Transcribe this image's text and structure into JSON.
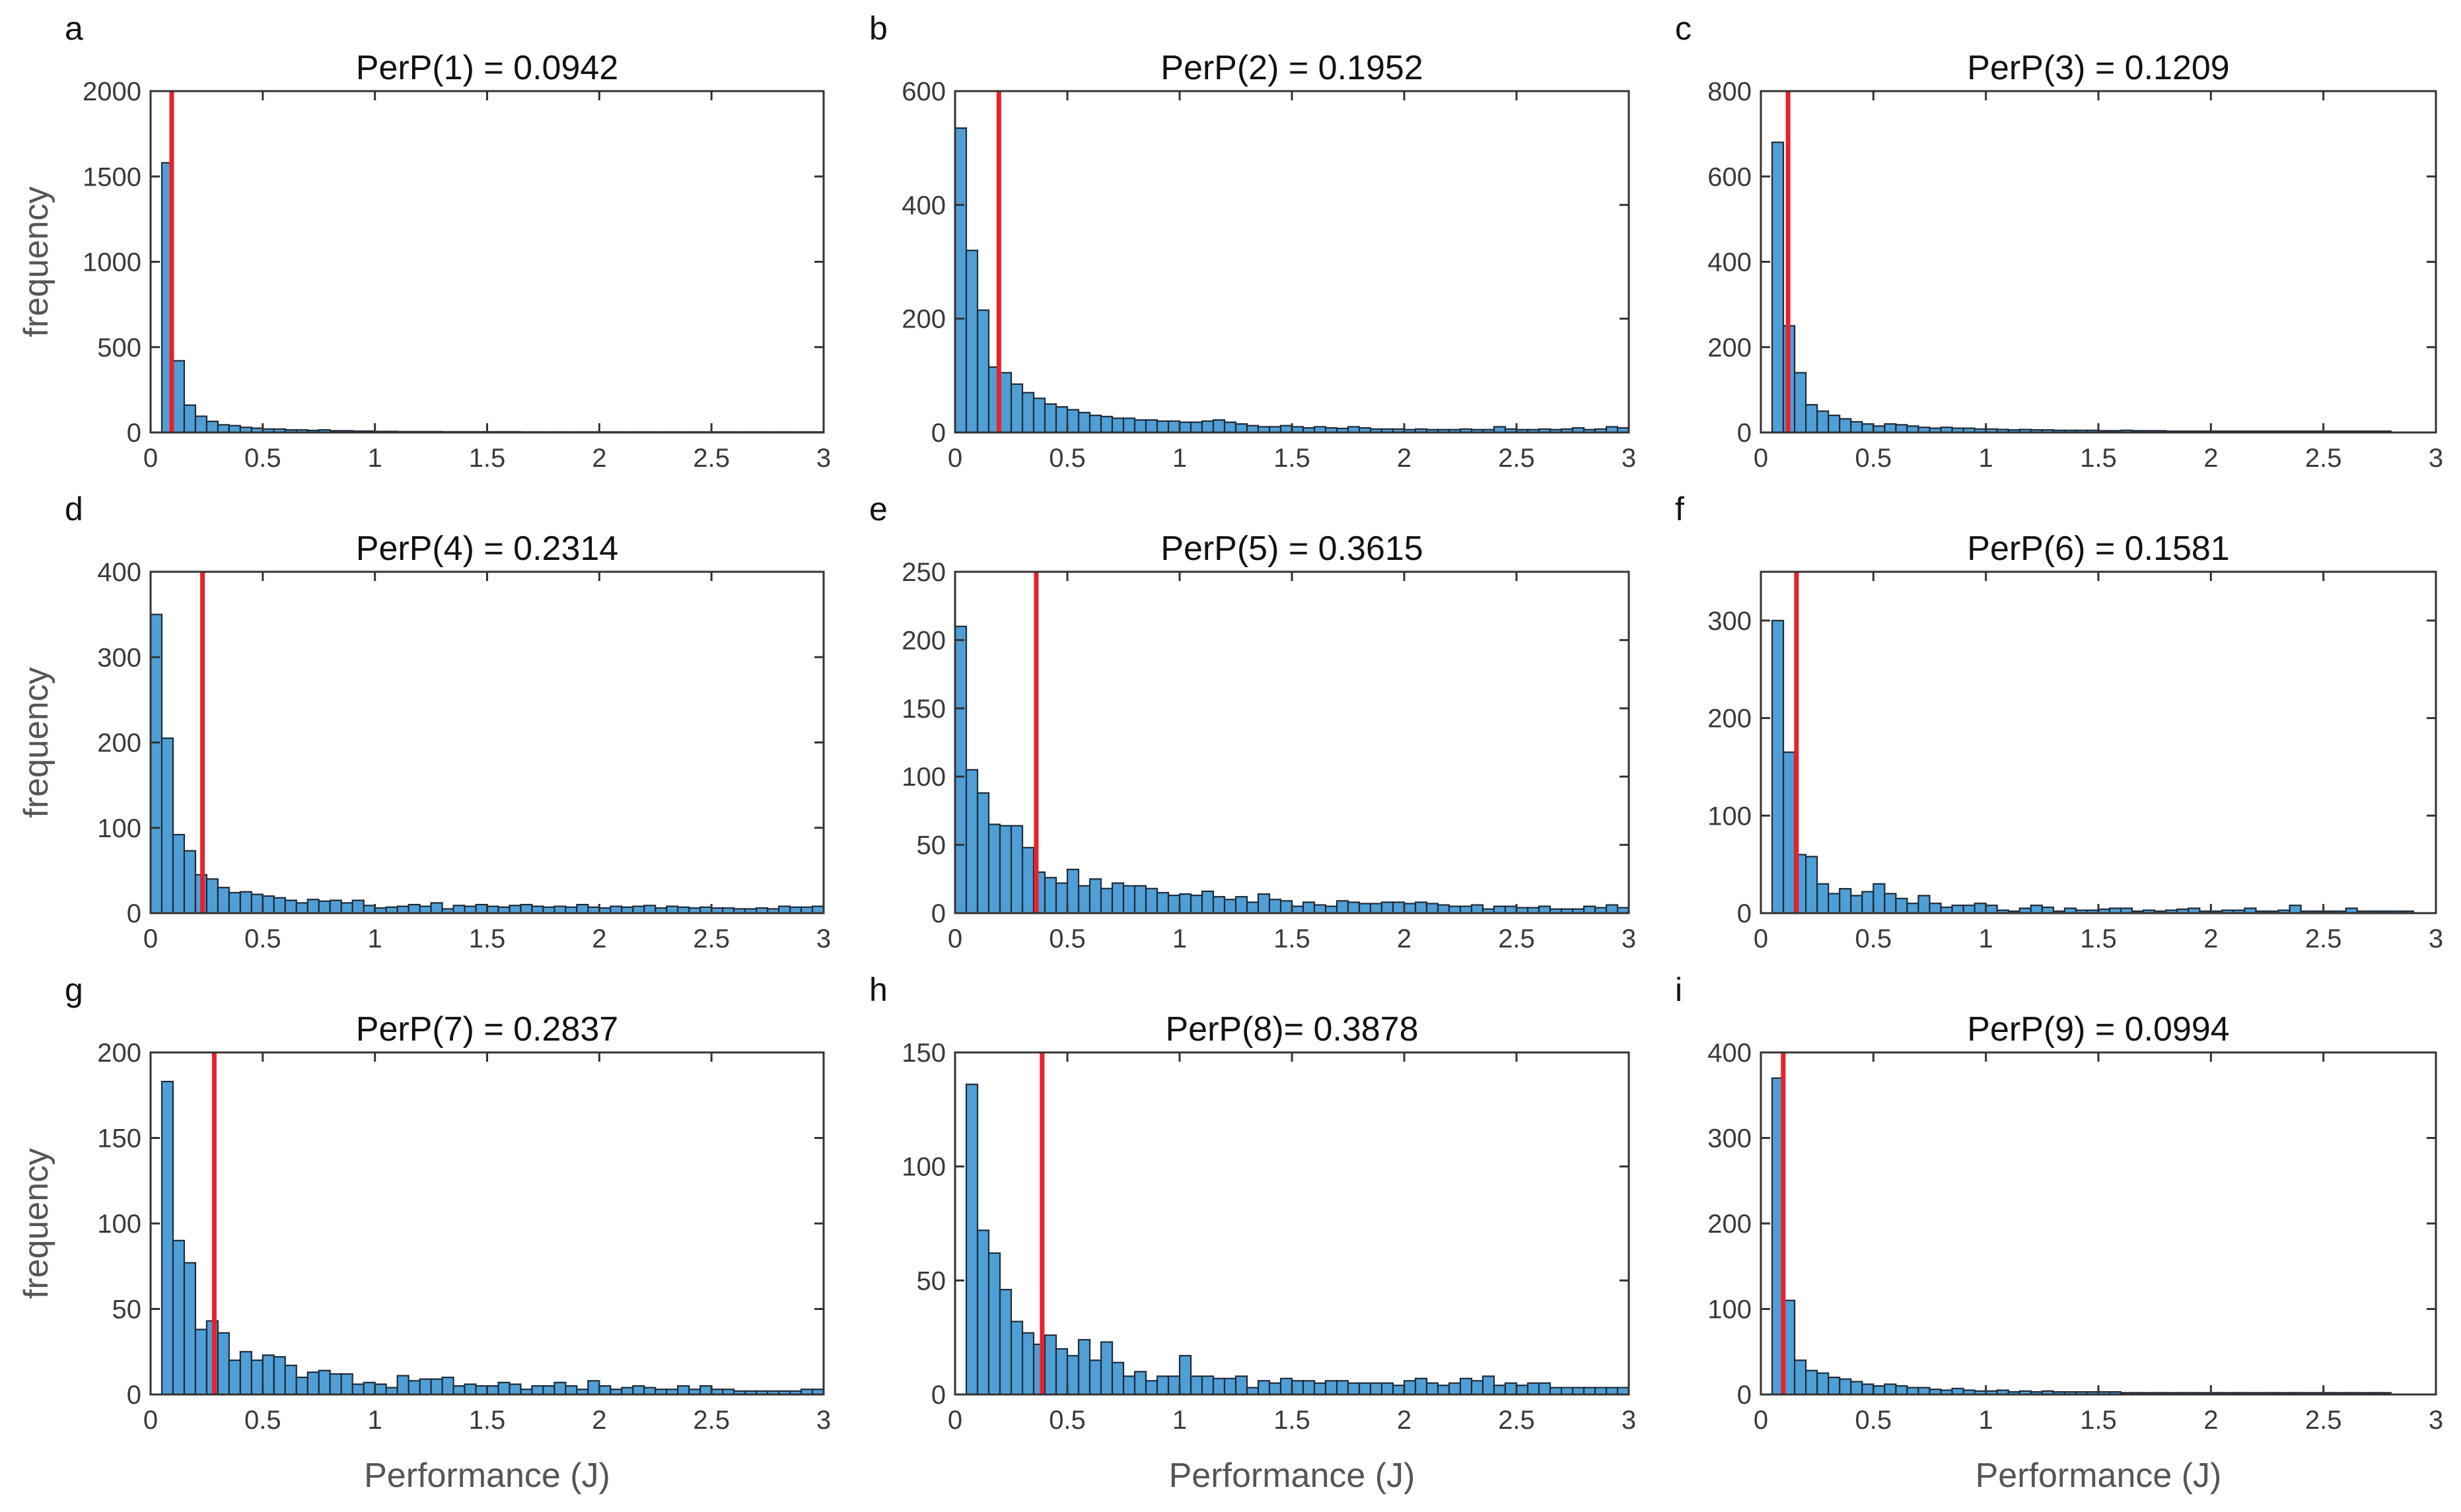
{
  "figure": {
    "xlabel": "Performance (J)",
    "ylabel": "frequency"
  },
  "colors": {
    "bar_fill": "#4f9fd6",
    "bar_edge": "#1f2a38",
    "marker": "#e8222a",
    "axes": "#333333"
  },
  "chart_data": [
    {
      "type": "bar",
      "letter": "a",
      "title": "PerP(1) = 0.0942",
      "marker": 0.0942,
      "ylim": [
        0,
        2000
      ],
      "yticks": [
        0,
        500,
        1000,
        1500,
        2000
      ],
      "xlim": [
        0,
        3
      ],
      "xticks": [
        "0",
        "0.5",
        "1",
        "1.5",
        "2",
        "2.5",
        "3"
      ],
      "bin_start": 0.05,
      "bin_width": 0.05,
      "values": [
        1580,
        420,
        160,
        95,
        65,
        45,
        40,
        30,
        25,
        20,
        20,
        15,
        15,
        12,
        15,
        10,
        10,
        8,
        8,
        6,
        6,
        5,
        5,
        5,
        5,
        4,
        4,
        4,
        4,
        4,
        4,
        4,
        3,
        3,
        3,
        3,
        3,
        3,
        3,
        3,
        3,
        3,
        3,
        3,
        3,
        3,
        3,
        3,
        3,
        3,
        3,
        3,
        3,
        3,
        3,
        3,
        3,
        3,
        3
      ]
    },
    {
      "type": "bar",
      "letter": "b",
      "title": "PerP(2) = 0.1952",
      "marker": 0.1952,
      "ylim": [
        0,
        600
      ],
      "yticks": [
        0,
        200,
        400,
        600
      ],
      "xlim": [
        0,
        3
      ],
      "xticks": [
        "0",
        "0.5",
        "1",
        "1.5",
        "2",
        "2.5",
        "3"
      ],
      "bin_start": 0.0,
      "bin_width": 0.05,
      "values": [
        535,
        320,
        215,
        115,
        105,
        85,
        70,
        60,
        50,
        45,
        40,
        35,
        30,
        28,
        25,
        25,
        22,
        22,
        20,
        20,
        18,
        18,
        20,
        22,
        18,
        15,
        12,
        10,
        10,
        12,
        10,
        8,
        10,
        8,
        7,
        10,
        8,
        6,
        6,
        6,
        5,
        6,
        5,
        5,
        5,
        6,
        5,
        5,
        10,
        6,
        5,
        5,
        6,
        5,
        6,
        8,
        5,
        6,
        10,
        8
      ]
    },
    {
      "type": "bar",
      "letter": "c",
      "title": "PerP(3) =  0.1209",
      "marker": 0.1209,
      "ylim": [
        0,
        800
      ],
      "yticks": [
        0,
        200,
        400,
        600,
        800
      ],
      "xlim": [
        0,
        3
      ],
      "xticks": [
        "0",
        "0.5",
        "1",
        "1.5",
        "2",
        "2.5",
        "3"
      ],
      "bin_start": 0.05,
      "bin_width": 0.05,
      "values": [
        680,
        250,
        140,
        65,
        50,
        40,
        32,
        25,
        20,
        15,
        20,
        18,
        15,
        12,
        10,
        12,
        10,
        10,
        8,
        8,
        7,
        6,
        7,
        6,
        6,
        5,
        5,
        5,
        5,
        4,
        4,
        5,
        4,
        4,
        4,
        3,
        3,
        3,
        3,
        3,
        3,
        3,
        3,
        3,
        3,
        3,
        3,
        3,
        3,
        3,
        3,
        3,
        3,
        3,
        3
      ]
    },
    {
      "type": "bar",
      "letter": "d",
      "title": "PerP(4) = 0.2314",
      "marker": 0.2314,
      "ylim": [
        0,
        400
      ],
      "yticks": [
        0,
        100,
        200,
        300,
        400
      ],
      "xlim": [
        0,
        3
      ],
      "xticks": [
        "0",
        "0.5",
        "1",
        "1.5",
        "2",
        "2.5",
        "3"
      ],
      "bin_start": 0.0,
      "bin_width": 0.05,
      "values": [
        350,
        205,
        92,
        73,
        45,
        40,
        30,
        24,
        25,
        22,
        20,
        18,
        15,
        12,
        16,
        14,
        15,
        12,
        15,
        9,
        6,
        7,
        8,
        10,
        8,
        12,
        5,
        9,
        8,
        10,
        8,
        7,
        9,
        10,
        8,
        7,
        8,
        7,
        10,
        7,
        6,
        8,
        7,
        8,
        9,
        6,
        8,
        7,
        6,
        7,
        6,
        6,
        5,
        5,
        6,
        5,
        8,
        7,
        7,
        8
      ]
    },
    {
      "type": "bar",
      "letter": "e",
      "title": "PerP(5) = 0.3615",
      "marker": 0.3615,
      "ylim": [
        0,
        250
      ],
      "yticks": [
        0,
        50,
        100,
        150,
        200,
        250
      ],
      "xlim": [
        0,
        3
      ],
      "xticks": [
        "0",
        "0.5",
        "1",
        "1.5",
        "2",
        "2.5",
        "3"
      ],
      "bin_start": 0.0,
      "bin_width": 0.05,
      "values": [
        210,
        105,
        88,
        65,
        64,
        64,
        48,
        30,
        26,
        22,
        32,
        20,
        25,
        18,
        22,
        20,
        20,
        18,
        15,
        13,
        14,
        13,
        16,
        12,
        10,
        12,
        8,
        14,
        10,
        9,
        5,
        8,
        6,
        5,
        9,
        8,
        7,
        7,
        8,
        8,
        7,
        8,
        7,
        6,
        5,
        5,
        6,
        3,
        5,
        5,
        4,
        4,
        5,
        3,
        3,
        3,
        5,
        4,
        6,
        4,
        8
      ]
    },
    {
      "type": "bar",
      "letter": "f",
      "title": "PerP(6) =  0.1581",
      "marker": 0.1581,
      "ylim": [
        0,
        350
      ],
      "yticks": [
        0,
        100,
        200,
        300
      ],
      "xlim": [
        0,
        3
      ],
      "xticks": [
        "0",
        "0.5",
        "1",
        "1.5",
        "2",
        "2.5",
        "3"
      ],
      "bin_start": 0.05,
      "bin_width": 0.05,
      "values": [
        300,
        165,
        60,
        58,
        30,
        20,
        25,
        18,
        22,
        30,
        20,
        15,
        10,
        18,
        10,
        6,
        8,
        8,
        10,
        8,
        3,
        2,
        5,
        8,
        6,
        2,
        5,
        3,
        3,
        4,
        5,
        5,
        2,
        3,
        2,
        3,
        4,
        5,
        2,
        2,
        3,
        3,
        5,
        2,
        2,
        3,
        8,
        2,
        2,
        2,
        2,
        5,
        2,
        2,
        2,
        2,
        2
      ]
    },
    {
      "type": "bar",
      "letter": "g",
      "title": "PerP(7) = 0.2837",
      "marker": 0.2837,
      "ylim": [
        0,
        200
      ],
      "yticks": [
        0,
        50,
        100,
        150,
        200
      ],
      "xlim": [
        0,
        3
      ],
      "xticks": [
        "0",
        "0.5",
        "1",
        "1.5",
        "2",
        "2.5",
        "3"
      ],
      "bin_start": 0.05,
      "bin_width": 0.05,
      "values": [
        183,
        90,
        77,
        38,
        43,
        36,
        20,
        25,
        20,
        23,
        22,
        17,
        10,
        13,
        14,
        12,
        12,
        6,
        7,
        6,
        4,
        11,
        8,
        9,
        9,
        10,
        5,
        6,
        5,
        5,
        7,
        6,
        3,
        5,
        5,
        7,
        5,
        3,
        8,
        5,
        3,
        4,
        5,
        4,
        3,
        3,
        5,
        3,
        5,
        3,
        3,
        2,
        2,
        2,
        2,
        2,
        2,
        3,
        3
      ]
    },
    {
      "type": "bar",
      "letter": "h",
      "title": "PerP(8)= 0.3878",
      "marker": 0.3878,
      "ylim": [
        0,
        150
      ],
      "yticks": [
        0,
        50,
        100,
        150
      ],
      "xlim": [
        0,
        3
      ],
      "xticks": [
        "0",
        "0.5",
        "1",
        "1.5",
        "2",
        "2.5",
        "3"
      ],
      "bin_start": 0.05,
      "bin_width": 0.05,
      "values": [
        136,
        72,
        62,
        46,
        32,
        27,
        22,
        26,
        20,
        17,
        24,
        15,
        23,
        14,
        8,
        10,
        6,
        8,
        8,
        17,
        8,
        8,
        7,
        7,
        8,
        3,
        6,
        5,
        7,
        6,
        6,
        5,
        6,
        6,
        5,
        5,
        5,
        5,
        4,
        6,
        7,
        5,
        4,
        5,
        7,
        6,
        8,
        4,
        5,
        4,
        5,
        5,
        3,
        3,
        3,
        3,
        3,
        3,
        3
      ]
    },
    {
      "type": "bar",
      "letter": "i",
      "title": "PerP(9) = 0.0994",
      "marker": 0.0994,
      "ylim": [
        0,
        400
      ],
      "yticks": [
        0,
        100,
        200,
        300,
        400
      ],
      "xlim": [
        0,
        3
      ],
      "xticks": [
        "0",
        "0.5",
        "1",
        "1.5",
        "2",
        "2.5",
        "3"
      ],
      "bin_start": 0.05,
      "bin_width": 0.05,
      "values": [
        370,
        110,
        40,
        28,
        25,
        20,
        18,
        15,
        12,
        10,
        12,
        10,
        8,
        8,
        6,
        5,
        7,
        5,
        4,
        4,
        5,
        3,
        4,
        3,
        4,
        3,
        3,
        3,
        3,
        3,
        3,
        2,
        2,
        2,
        2,
        2,
        2,
        2,
        2,
        2,
        2,
        2,
        2,
        2,
        2,
        2,
        2,
        2,
        2,
        2,
        2,
        2,
        2,
        2,
        2
      ]
    }
  ]
}
